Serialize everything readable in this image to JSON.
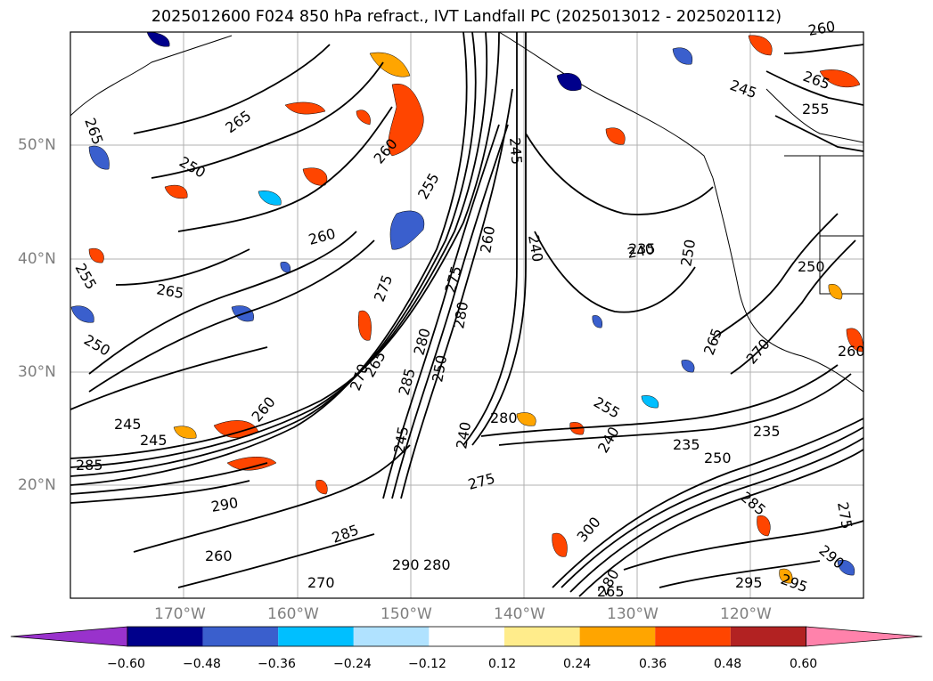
{
  "title": "2025012600 F024 850 hPa refract., IVT Landfall PC (2025013012 - 2025020112)",
  "lat_labels": [
    "50°N",
    "40°N",
    "30°N",
    "20°N"
  ],
  "lon_labels": [
    "170°W",
    "160°W",
    "150°W",
    "140°W",
    "130°W",
    "120°W"
  ],
  "contour_labels": [
    "265",
    "265",
    "260",
    "255",
    "260",
    "245",
    "265",
    "255",
    "250",
    "245",
    "245",
    "285",
    "275",
    "270",
    "265",
    "285",
    "280",
    "260",
    "250",
    "245",
    "240",
    "275",
    "280",
    "275",
    "240",
    "240",
    "250",
    "260",
    "265",
    "270",
    "255",
    "240",
    "235",
    "235",
    "250",
    "285",
    "300",
    "290",
    "295",
    "295",
    "290",
    "275",
    "280",
    "285",
    "270",
    "290",
    "280",
    "260",
    "250",
    "245",
    "265",
    "255",
    "260",
    "265",
    "250",
    "235",
    "280",
    "260"
  ],
  "colorbar": {
    "colors": [
      "#9932cc",
      "#00008b",
      "#3a5fcd",
      "#00bfff",
      "#b0e2ff",
      "#ffffff",
      "#ffec8b",
      "#ffa500",
      "#ff4500",
      "#b22222",
      "#ff82ab"
    ],
    "tick_labels": [
      "−0.60",
      "−0.48",
      "−0.36",
      "−0.24",
      "−0.12",
      "0.12",
      "0.24",
      "0.36",
      "0.48",
      "0.60"
    ]
  },
  "colors": {
    "axis_label": "#7f7f7f",
    "contour": "#000000",
    "grid": "#b0b0b0"
  }
}
